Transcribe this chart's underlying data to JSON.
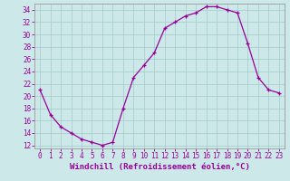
{
  "hours": [
    0,
    1,
    2,
    3,
    4,
    5,
    6,
    7,
    8,
    9,
    10,
    11,
    12,
    13,
    14,
    15,
    16,
    17,
    18,
    19,
    20,
    21,
    22,
    23
  ],
  "values": [
    21,
    17,
    15,
    14,
    13,
    12.5,
    12,
    12.5,
    18,
    23,
    25,
    27,
    31,
    32,
    33,
    33.5,
    34.5,
    34.5,
    34,
    33.5,
    28.5,
    23,
    21,
    20.5
  ],
  "line_color": "#990099",
  "marker": "+",
  "bg_color": "#cce8e8",
  "grid_color": "#aacece",
  "xlabel": "Windchill (Refroidissement éolien,°C)",
  "ylim_min": 11.5,
  "ylim_max": 35.0,
  "yticks": [
    12,
    14,
    16,
    18,
    20,
    22,
    24,
    26,
    28,
    30,
    32,
    34
  ],
  "xlim_min": -0.5,
  "xlim_max": 23.5,
  "xticks": [
    0,
    1,
    2,
    3,
    4,
    5,
    6,
    7,
    8,
    9,
    10,
    11,
    12,
    13,
    14,
    15,
    16,
    17,
    18,
    19,
    20,
    21,
    22,
    23
  ],
  "tick_label_fontsize": 5.5,
  "xlabel_fontsize": 6.5,
  "marker_size": 3,
  "linewidth": 0.9
}
